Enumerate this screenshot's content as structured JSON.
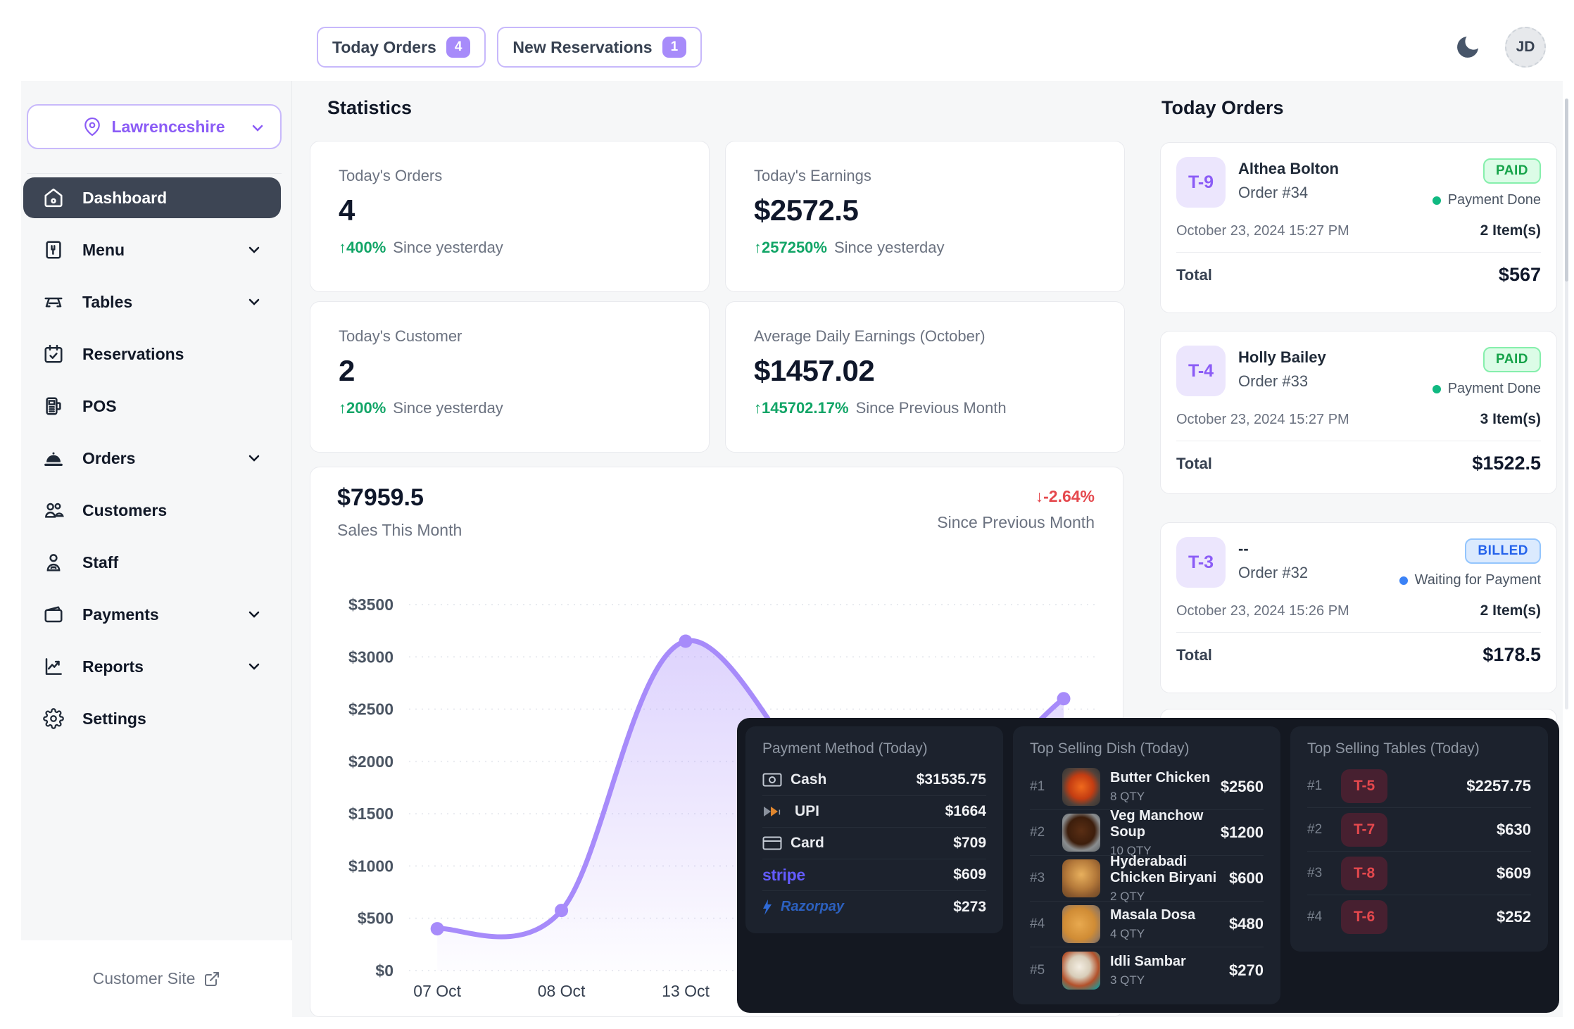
{
  "header": {
    "today_orders": {
      "label": "Today Orders",
      "count": "4"
    },
    "new_reservations": {
      "label": "New Reservations",
      "count": "1"
    },
    "avatar_initials": "JD"
  },
  "sidebar": {
    "location": "Lawrenceshire",
    "items": [
      {
        "label": "Dashboard"
      },
      {
        "label": "Menu"
      },
      {
        "label": "Tables"
      },
      {
        "label": "Reservations"
      },
      {
        "label": "POS"
      },
      {
        "label": "Orders"
      },
      {
        "label": "Customers"
      },
      {
        "label": "Staff"
      },
      {
        "label": "Payments"
      },
      {
        "label": "Reports"
      },
      {
        "label": "Settings"
      }
    ],
    "footer_link": "Customer Site"
  },
  "stats": {
    "title": "Statistics",
    "cards": [
      {
        "label": "Today's Orders",
        "value": "4",
        "arrow": "↑",
        "delta": "400%",
        "period": "Since yesterday"
      },
      {
        "label": "Today's Earnings",
        "value": "$2572.5",
        "arrow": "↑",
        "delta": "257250%",
        "period": "Since yesterday"
      },
      {
        "label": "Today's Customer",
        "value": "2",
        "arrow": "↑",
        "delta": "200%",
        "period": "Since yesterday"
      },
      {
        "label": "Average Daily Earnings (October)",
        "value": "$1457.02",
        "arrow": "↑",
        "delta": "145702.17%",
        "period": "Since Previous Month"
      }
    ]
  },
  "sales_chart": {
    "total": "$7959.5",
    "subtitle": "Sales This Month",
    "arrow": "↓",
    "delta": "-2.64%",
    "period": "Since Previous Month"
  },
  "chart_data": {
    "type": "line",
    "title": "Sales This Month",
    "total_label": "$7959.5",
    "ylim": [
      0,
      3500
    ],
    "grid": true,
    "line_color": "#a78bfa",
    "y_ticks": [
      "$3500",
      "$3000",
      "$2500",
      "$2000",
      "$1500",
      "$1000",
      "$500",
      "$0"
    ],
    "x_ticks": [
      {
        "label": "07 Oct",
        "x": 0.041
      },
      {
        "label": "08 Oct",
        "x": 0.221
      },
      {
        "label": "13 Oct",
        "x": 0.401
      }
    ],
    "points": [
      {
        "x": 0.041,
        "value": 400,
        "dot": true
      },
      {
        "x": 0.221,
        "value": 575,
        "dot": true
      },
      {
        "x": 0.401,
        "value": 3150,
        "dot": true
      },
      {
        "x": 0.673,
        "value": 1300,
        "dot": false
      },
      {
        "x": 0.949,
        "value": 2600,
        "dot": true
      }
    ]
  },
  "today_orders": {
    "title": "Today Orders",
    "cards": [
      {
        "table": "T-9",
        "name": "Althea Bolton",
        "order": "Order #34",
        "status": "PAID",
        "status_type": "paid",
        "payment_status": "Payment Done",
        "datetime": "October 23, 2024 15:27 PM",
        "items": "2 Item(s)",
        "total_label": "Total",
        "total": "$567"
      },
      {
        "table": "T-4",
        "name": "Holly Bailey",
        "order": "Order #33",
        "status": "PAID",
        "status_type": "paid",
        "payment_status": "Payment Done",
        "datetime": "October 23, 2024 15:27 PM",
        "items": "3 Item(s)",
        "total_label": "Total",
        "total": "$1522.5"
      },
      {
        "table": "T-3",
        "name": "--",
        "order": "Order #32",
        "status": "BILLED",
        "status_type": "billed",
        "payment_status": "Waiting for Payment",
        "datetime": "October 23, 2024 15:26 PM",
        "items": "2 Item(s)",
        "total_label": "Total",
        "total": "$178.5"
      }
    ]
  },
  "payment_methods": {
    "title": "Payment Method (Today)",
    "rows": [
      {
        "method": "Cash",
        "amount": "$31535.75"
      },
      {
        "method": "UPI",
        "amount": "$1664"
      },
      {
        "method": "Card",
        "amount": "$709"
      },
      {
        "method": "stripe",
        "amount": "$609"
      },
      {
        "method": "Razorpay",
        "amount": "$273"
      }
    ]
  },
  "top_dishes": {
    "title": "Top Selling Dish (Today)",
    "rows": [
      {
        "rank": "#1",
        "name": "Butter Chicken",
        "qty": "8 QTY",
        "amount": "$2560",
        "img": "butter-chicken"
      },
      {
        "rank": "#2",
        "name": "Veg Manchow Soup",
        "qty": "10 QTY",
        "amount": "$1200",
        "img": "veg-manchow-soup"
      },
      {
        "rank": "#3",
        "name": "Hyderabadi Chicken Biryani",
        "qty": "2 QTY",
        "amount": "$600",
        "img": "biryani"
      },
      {
        "rank": "#4",
        "name": "Masala Dosa",
        "qty": "4 QTY",
        "amount": "$480",
        "img": "masala-dosa"
      },
      {
        "rank": "#5",
        "name": "Idli Sambar",
        "qty": "3 QTY",
        "amount": "$270",
        "img": "idli-sambar"
      }
    ]
  },
  "top_tables": {
    "title": "Top Selling Tables (Today)",
    "rows": [
      {
        "rank": "#1",
        "table": "T-5",
        "amount": "$2257.75"
      },
      {
        "rank": "#2",
        "table": "T-7",
        "amount": "$630"
      },
      {
        "rank": "#3",
        "table": "T-8",
        "amount": "$609"
      },
      {
        "rank": "#4",
        "table": "T-6",
        "amount": "$252"
      }
    ]
  }
}
